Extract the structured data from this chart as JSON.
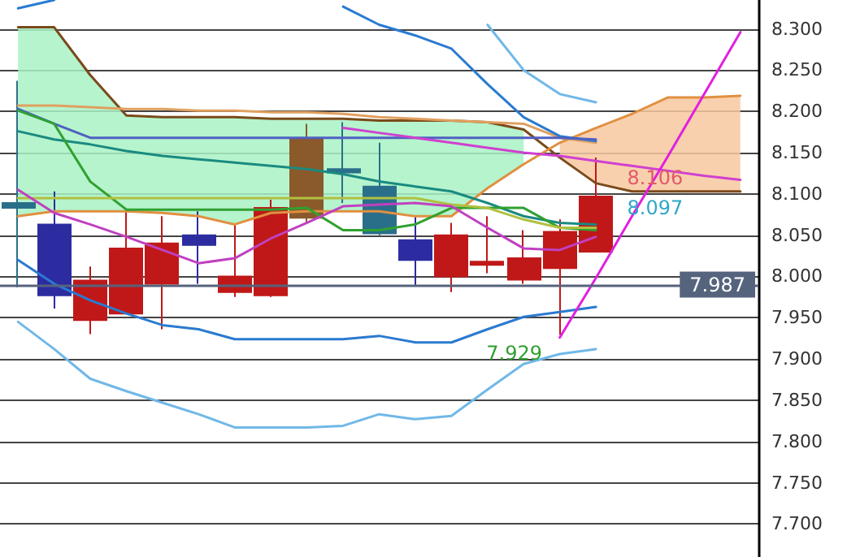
{
  "chart_data": {
    "type": "candlestick",
    "categories": [
      null,
      null,
      null,
      null,
      null,
      null,
      null,
      null,
      null,
      null,
      null,
      null,
      null,
      null,
      null,
      null,
      null,
      null,
      null,
      null,
      null
    ],
    "ohlc": [
      [
        8.089,
        8.237,
        7.987,
        8.083
      ],
      [
        8.063,
        8.103,
        7.961,
        7.977
      ],
      [
        7.947,
        8.012,
        7.93,
        7.995
      ],
      [
        7.955,
        8.079,
        7.955,
        8.034
      ],
      [
        7.991,
        8.073,
        7.936,
        8.04
      ],
      [
        8.05,
        8.079,
        7.991,
        8.038
      ],
      [
        7.981,
        8.063,
        7.975,
        8.0
      ],
      [
        7.977,
        8.093,
        7.975,
        8.083
      ],
      [
        8.071,
        8.185,
        8.065,
        8.166
      ],
      [
        8.13,
        8.187,
        8.089,
        8.126
      ],
      [
        8.109,
        8.162,
        8.05,
        8.052
      ],
      [
        8.044,
        8.073,
        7.989,
        8.02
      ],
      [
        8.0,
        8.065,
        7.981,
        8.05
      ],
      [
        8.014,
        8.073,
        8.004,
        8.018
      ],
      [
        7.996,
        8.056,
        7.991,
        8.022
      ],
      [
        8.01,
        8.069,
        7.929,
        8.054
      ],
      [
        8.03,
        8.144,
        8.03,
        8.097
      ],
      null,
      null,
      null,
      null
    ],
    "colors": [
      "#2a6f8a",
      "#2c2ca0",
      "#c01818",
      "#c01818",
      "#c01818",
      "#2c2ca0",
      "#c01818",
      "#c01818",
      "#8a5a2a",
      "#2a6f8a",
      "#2a6f8a",
      "#2c2ca0",
      "#c01818",
      "#c01818",
      "#c01818",
      "#c01818",
      "#c01818",
      null,
      null,
      null,
      null
    ],
    "series": [
      {
        "type": "line",
        "color": "#a8f2c4",
        "values": [
          null,
          null,
          null,
          null,
          null,
          null,
          null,
          null,
          null,
          null,
          null,
          null,
          null,
          null,
          null,
          null,
          null,
          null,
          null,
          null,
          null
        ],
        "lower": [
          8.073,
          8.079,
          8.079,
          8.079,
          8.077,
          8.073,
          8.063,
          8.077,
          8.079,
          8.079,
          8.079,
          8.073,
          8.073,
          8.107,
          8.136,
          null,
          null,
          null,
          null,
          null,
          null
        ],
        "upper": [
          8.302,
          8.302,
          8.244,
          8.195,
          8.193,
          8.193,
          8.193,
          8.191,
          8.191,
          8.191,
          8.189,
          8.189,
          8.189,
          8.187,
          8.178,
          null,
          null,
          null,
          null,
          null,
          null
        ]
      },
      {
        "type": "line",
        "color": "#f8c8a0",
        "values": [
          null,
          null,
          null,
          null,
          null,
          null,
          null,
          null,
          null,
          null,
          null,
          null,
          null,
          null,
          null,
          null,
          null,
          null,
          null,
          null,
          null
        ],
        "lower": [
          null,
          null,
          null,
          null,
          null,
          null,
          null,
          null,
          null,
          null,
          null,
          null,
          null,
          null,
          null,
          8.144,
          8.113,
          8.103,
          8.103,
          8.103,
          8.103
        ],
        "upper": [
          null,
          null,
          null,
          null,
          null,
          null,
          null,
          null,
          null,
          null,
          null,
          null,
          null,
          null,
          null,
          8.162,
          8.18,
          8.197,
          8.217,
          8.217,
          8.219
        ]
      },
      {
        "type": "line",
        "color": "#7a4a1a",
        "values": [
          8.302,
          8.302,
          8.244,
          8.195,
          8.193,
          8.193,
          8.193,
          8.191,
          8.191,
          8.191,
          8.189,
          8.189,
          8.189,
          8.187,
          8.178,
          8.144,
          8.113,
          8.103,
          8.103,
          8.103,
          8.103
        ]
      },
      {
        "type": "line",
        "color": "#e09040",
        "values": [
          8.073,
          8.079,
          8.079,
          8.079,
          8.077,
          8.073,
          8.063,
          8.077,
          8.079,
          8.079,
          8.079,
          8.073,
          8.073,
          8.107,
          8.136,
          8.162,
          8.18,
          8.197,
          8.217,
          8.217,
          8.219
        ]
      },
      {
        "type": "line",
        "color": "#e0a060",
        "values": [
          8.207,
          8.207,
          8.205,
          8.203,
          8.203,
          8.201,
          8.201,
          8.199,
          8.199,
          8.197,
          8.193,
          8.191,
          8.189,
          8.187,
          8.185,
          8.168,
          8.162,
          null,
          null,
          null,
          null
        ]
      },
      {
        "type": "line",
        "color": "#2a7ad0",
        "values": [
          8.325,
          8.335,
          null,
          null,
          null,
          null,
          null,
          null,
          null,
          8.327,
          8.305,
          8.292,
          8.276,
          8.233,
          8.193,
          8.17,
          8.164,
          null,
          null,
          null,
          null
        ]
      },
      {
        "type": "line",
        "color": "#70b8e8",
        "values": [
          null,
          null,
          null,
          null,
          null,
          null,
          null,
          null,
          null,
          null,
          null,
          null,
          null,
          8.305,
          8.25,
          8.221,
          8.211,
          null,
          null,
          null,
          null
        ]
      },
      {
        "type": "line",
        "color": "#2a7ad0",
        "values": [
          8.02,
          7.991,
          7.971,
          7.955,
          7.941,
          7.936,
          7.924,
          7.924,
          7.924,
          7.924,
          7.928,
          7.92,
          7.92,
          7.936,
          7.951,
          7.957,
          7.963,
          null,
          null,
          null,
          null
        ]
      },
      {
        "type": "line",
        "color": "#70b8e8",
        "values": [
          7.945,
          7.912,
          7.876,
          7.861,
          7.847,
          7.833,
          7.817,
          7.817,
          7.817,
          7.819,
          7.833,
          7.827,
          7.831,
          7.863,
          7.894,
          7.906,
          7.912,
          null,
          null,
          null,
          null
        ]
      },
      {
        "type": "line",
        "color": "#1a8a80",
        "values": [
          8.176,
          8.166,
          8.16,
          8.152,
          8.146,
          8.142,
          8.138,
          8.134,
          8.13,
          8.124,
          8.115,
          8.109,
          8.103,
          8.089,
          8.073,
          8.065,
          8.063,
          null,
          null,
          null,
          null
        ]
      },
      {
        "type": "line",
        "color": "#5060c0",
        "values": [
          8.203,
          8.185,
          8.168,
          8.168,
          8.168,
          8.168,
          8.168,
          8.168,
          8.168,
          8.168,
          8.168,
          8.168,
          8.168,
          8.168,
          8.168,
          8.168,
          8.166,
          null,
          null,
          null,
          null
        ]
      },
      {
        "type": "line",
        "color": "#30a030",
        "values": [
          8.201,
          8.185,
          8.115,
          8.081,
          8.081,
          8.081,
          8.081,
          8.081,
          8.083,
          8.056,
          8.056,
          8.063,
          8.083,
          8.083,
          8.083,
          8.059,
          8.056,
          null,
          null,
          null,
          null
        ]
      },
      {
        "type": "line",
        "color": "#b0c040",
        "values": [
          8.095,
          8.095,
          8.095,
          8.095,
          8.095,
          8.095,
          8.095,
          8.095,
          8.095,
          8.095,
          8.095,
          8.095,
          8.087,
          8.083,
          8.069,
          8.059,
          8.059,
          null,
          null,
          null,
          null
        ]
      },
      {
        "type": "line",
        "color": "#c040c0",
        "values": [
          8.105,
          8.077,
          8.063,
          8.048,
          8.032,
          8.016,
          8.022,
          8.046,
          8.065,
          8.085,
          8.087,
          8.089,
          8.085,
          8.059,
          8.034,
          8.032,
          8.048,
          null,
          null,
          null,
          null
        ]
      },
      {
        "type": "line",
        "color": "#d040d0",
        "values": [
          null,
          null,
          null,
          null,
          null,
          null,
          null,
          null,
          null,
          8.18,
          8.174,
          8.168,
          8.162,
          8.156,
          8.15,
          8.146,
          8.14,
          8.134,
          8.128,
          8.122,
          8.117
        ]
      },
      {
        "type": "line",
        "color": "#e020e0",
        "values": [
          null,
          null,
          null,
          null,
          null,
          null,
          null,
          null,
          null,
          null,
          null,
          null,
          null,
          null,
          null,
          7.926,
          7.998,
          8.073,
          8.146,
          8.221,
          8.296
        ]
      }
    ],
    "ylim": [
      7.66,
      8.335
    ],
    "yticks": [
      {
        "value": 7.7,
        "label": "7.700"
      },
      {
        "value": 7.75,
        "label": "7.750"
      },
      {
        "value": 7.8,
        "label": "7.800"
      },
      {
        "value": 7.85,
        "label": "7.850"
      },
      {
        "value": 7.9,
        "label": "7.900"
      },
      {
        "value": 7.95,
        "label": "7.950"
      },
      {
        "value": 8.0,
        "label": "8.000"
      },
      {
        "value": 8.05,
        "label": "8.050"
      },
      {
        "value": 8.1,
        "label": "8.100"
      },
      {
        "value": 8.15,
        "label": "8.150"
      },
      {
        "value": 8.2,
        "label": "8.200"
      },
      {
        "value": 8.25,
        "label": "8.250"
      },
      {
        "value": 8.3,
        "label": "8.300"
      }
    ],
    "annotations": [
      {
        "text": "8.106",
        "y": 8.106
      },
      {
        "text": "8.097",
        "y": 8.097
      },
      "7.929"
    ],
    "ref_lines": [
      {
        "axis": "y",
        "value": 7.987,
        "label": "7.987",
        "color": "#56637d"
      }
    ],
    "grid": "y",
    "tick_labels": "y",
    "marker": "none",
    "line_style": "solid"
  }
}
